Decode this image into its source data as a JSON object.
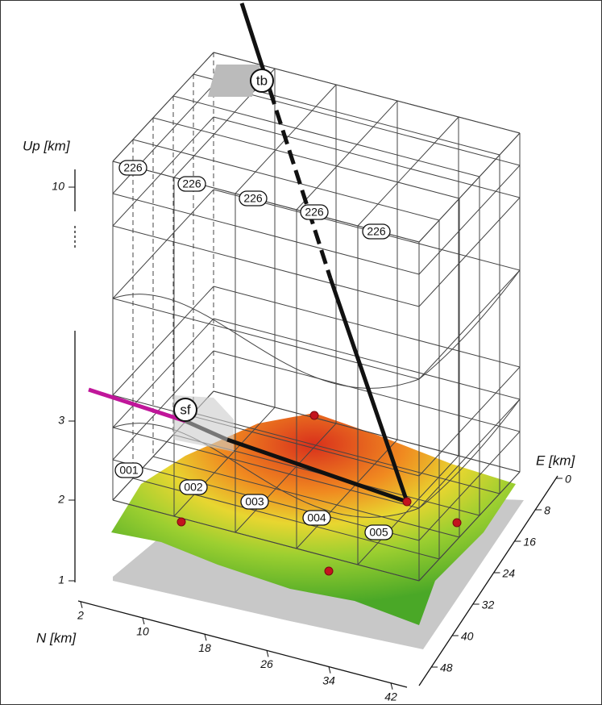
{
  "axes": {
    "up": {
      "label": "Up [km]",
      "ticks": [
        10,
        3,
        2,
        1
      ]
    },
    "n": {
      "label": "N [km]",
      "ticks": [
        2,
        10,
        18,
        26,
        34,
        42
      ]
    },
    "e": {
      "label": "E [km]",
      "ticks": [
        0,
        8,
        16,
        24,
        32,
        40,
        48
      ]
    }
  },
  "markers": {
    "top": "tb",
    "surface": "sf"
  },
  "cells": {
    "upper": [
      "226",
      "226",
      "226",
      "226",
      "226"
    ],
    "lower": [
      "001",
      "002",
      "003",
      "004",
      "005"
    ]
  }
}
